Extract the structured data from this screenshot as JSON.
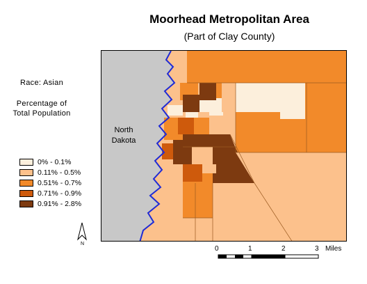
{
  "title": "Moorhead Metropolitan Area",
  "subtitle": "(Part of Clay County)",
  "race_label": "Race:  Asian",
  "measure_line1": "Percentage of",
  "measure_line2": "Total Population",
  "legend": [
    {
      "label": "0% - 0.1%",
      "color": "#fcefdc"
    },
    {
      "label": "0.11% - 0.5%",
      "color": "#fcc18c"
    },
    {
      "label": "0.51% - 0.7%",
      "color": "#f28a2a"
    },
    {
      "label": "0.71% - 0.9%",
      "color": "#ce5a0c"
    },
    {
      "label": "0.91% - 2.8%",
      "color": "#7d3a10"
    }
  ],
  "nd_line1": "North",
  "nd_line2": "Dakota",
  "north_label": "N",
  "scale": {
    "ticks": [
      "0",
      "1",
      "2",
      "3"
    ],
    "unit": "Miles"
  },
  "colors": {
    "river": "#1f2bd6",
    "north_dakota": "#c8c8c8",
    "background": "#ffffff"
  }
}
